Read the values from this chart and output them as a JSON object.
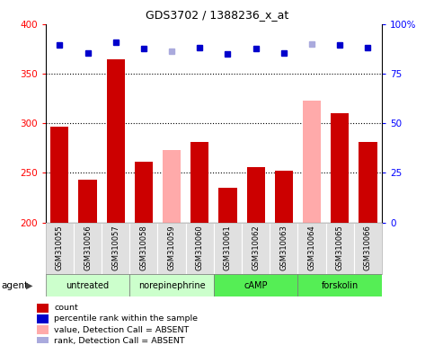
{
  "title": "GDS3702 / 1388236_x_at",
  "samples": [
    "GSM310055",
    "GSM310056",
    "GSM310057",
    "GSM310058",
    "GSM310059",
    "GSM310060",
    "GSM310061",
    "GSM310062",
    "GSM310063",
    "GSM310064",
    "GSM310065",
    "GSM310066"
  ],
  "bar_values": [
    297,
    243,
    365,
    261,
    null,
    281,
    235,
    256,
    252,
    null,
    310,
    281
  ],
  "bar_absent_values": [
    null,
    null,
    null,
    null,
    273,
    null,
    null,
    null,
    null,
    323,
    null,
    null
  ],
  "rank_values": [
    379,
    371,
    382,
    375,
    373,
    376,
    370,
    375,
    371,
    380,
    379,
    376
  ],
  "rank_absent_flags": [
    false,
    false,
    false,
    false,
    true,
    false,
    false,
    false,
    false,
    true,
    false,
    false
  ],
  "bar_color": "#cc0000",
  "bar_absent_color": "#ffaaaa",
  "rank_color": "#0000cc",
  "rank_absent_color": "#aaaadd",
  "ylim_left": [
    200,
    400
  ],
  "ylim_right": [
    0,
    100
  ],
  "yticks_left": [
    200,
    250,
    300,
    350,
    400
  ],
  "yticks_right": [
    0,
    25,
    50,
    75,
    100
  ],
  "grid_lines": [
    250,
    300,
    350
  ],
  "agent_groups": [
    {
      "label": "untreated",
      "start": 0,
      "end": 3,
      "color": "#ccffcc"
    },
    {
      "label": "norepinephrine",
      "start": 3,
      "end": 6,
      "color": "#ccffcc"
    },
    {
      "label": "cAMP",
      "start": 6,
      "end": 9,
      "color": "#55ee55"
    },
    {
      "label": "forskolin",
      "start": 9,
      "end": 12,
      "color": "#55ee55"
    }
  ],
  "legend_items": [
    {
      "color": "#cc0000",
      "label": "count"
    },
    {
      "color": "#0000cc",
      "label": "percentile rank within the sample"
    },
    {
      "color": "#ffaaaa",
      "label": "value, Detection Call = ABSENT"
    },
    {
      "color": "#aaaadd",
      "label": "rank, Detection Call = ABSENT"
    }
  ],
  "agent_label": "agent"
}
